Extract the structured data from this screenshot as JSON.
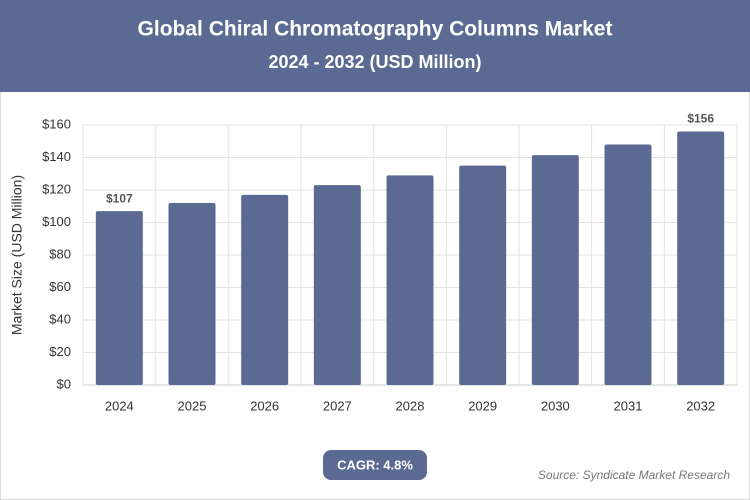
{
  "chart_data": {
    "type": "bar",
    "title": "Global Chiral Chromatography Columns Market",
    "subtitle": "2024 - 2032 (USD Million)",
    "y_label": "Market Size (USD Million)",
    "categories": [
      "2024",
      "2025",
      "2026",
      "2027",
      "2028",
      "2029",
      "2030",
      "2031",
      "2032"
    ],
    "values": [
      107,
      112,
      117,
      123,
      129,
      135,
      141.5,
      148,
      156
    ],
    "value_labels": [
      "$107",
      null,
      null,
      null,
      null,
      null,
      null,
      null,
      "$156"
    ],
    "color": "#5b6a92",
    "ylim": [
      0,
      160
    ],
    "yticks": [
      {
        "value": 0,
        "label": "$0"
      },
      {
        "value": 20,
        "label": "$20"
      },
      {
        "value": 40,
        "label": "$40"
      },
      {
        "value": 60,
        "label": "$60"
      },
      {
        "value": 80,
        "label": "$80"
      },
      {
        "value": 100,
        "label": "$100"
      },
      {
        "value": 120,
        "label": "$120"
      },
      {
        "value": 140,
        "label": "$140"
      },
      {
        "value": 160,
        "label": "$160"
      }
    ],
    "grid": true,
    "cagr": "CAGR: 4.8%",
    "source": "Source: Syndicate Market Research"
  }
}
